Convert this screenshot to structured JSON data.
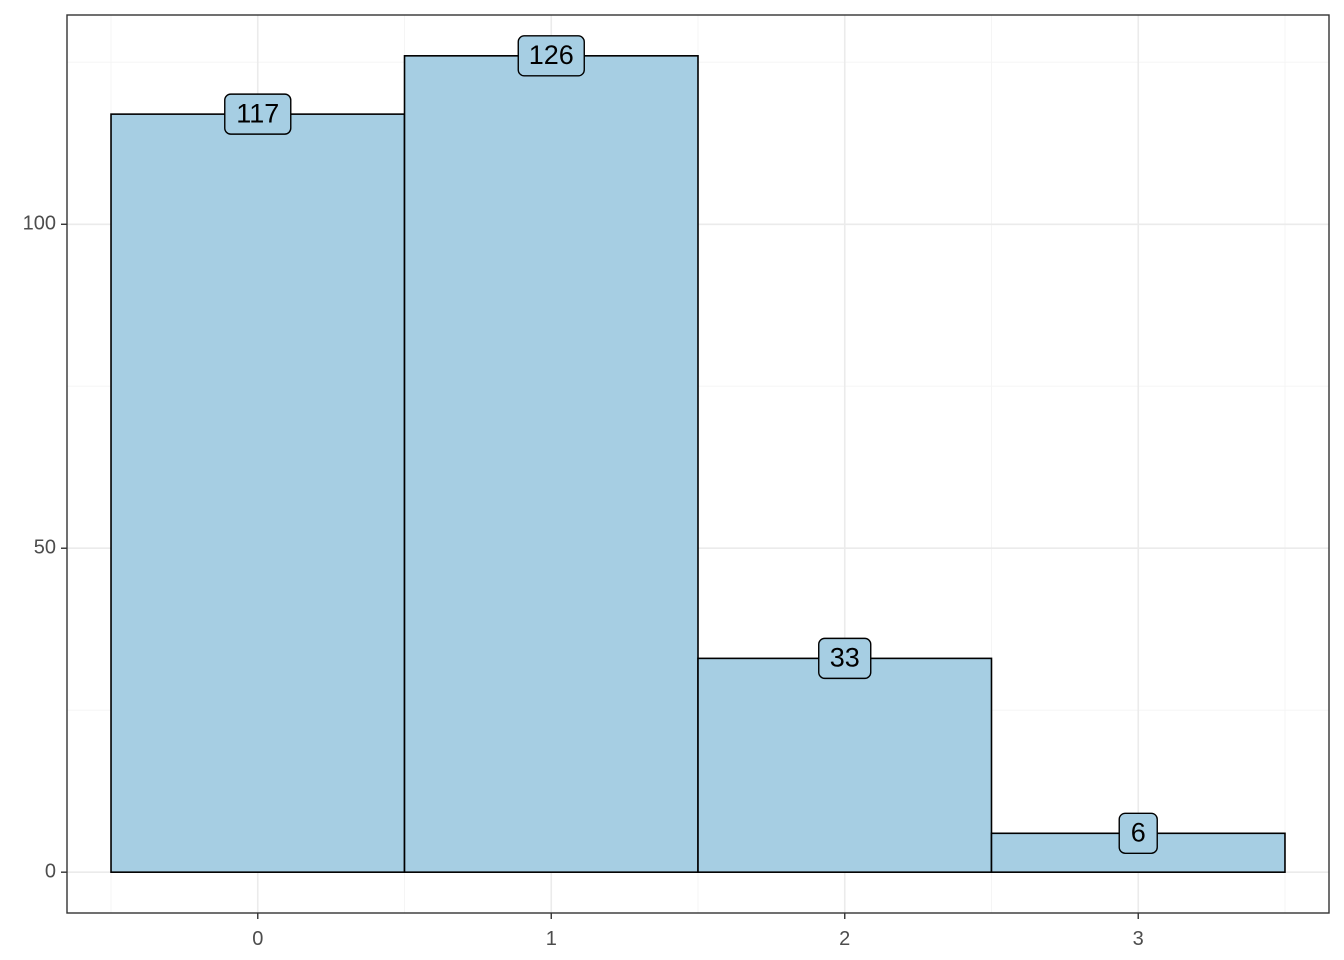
{
  "chart_data": {
    "type": "bar",
    "categories": [
      "0",
      "1",
      "2",
      "3"
    ],
    "values": [
      117,
      126,
      33,
      6
    ],
    "data_labels": [
      "117",
      "126",
      "33",
      "6"
    ],
    "title": "",
    "xlabel": "",
    "ylabel": "",
    "xlim": [
      -0.65,
      3.65
    ],
    "ylim": [
      -6.3,
      132.3
    ],
    "x_ticks": [
      0,
      1,
      2,
      3
    ],
    "x_tick_labels": [
      "0",
      "1",
      "2",
      "3"
    ],
    "y_ticks": [
      0,
      50,
      100
    ],
    "y_tick_labels": [
      "0",
      "50",
      "100"
    ],
    "y_minor_ticks": [
      25,
      75,
      125
    ],
    "x_minor_ticks": [
      -0.5,
      0.5,
      1.5,
      2.5,
      3.5
    ],
    "bar_width": 1,
    "grid": true,
    "legend": "none",
    "colors": {
      "bar_fill": "#a6cee3",
      "bar_stroke": "#000000",
      "grid_major": "#ebebeb",
      "grid_minor": "#f5f5f5",
      "panel_border": "#333333",
      "tick_text": "#4d4d4d"
    }
  }
}
